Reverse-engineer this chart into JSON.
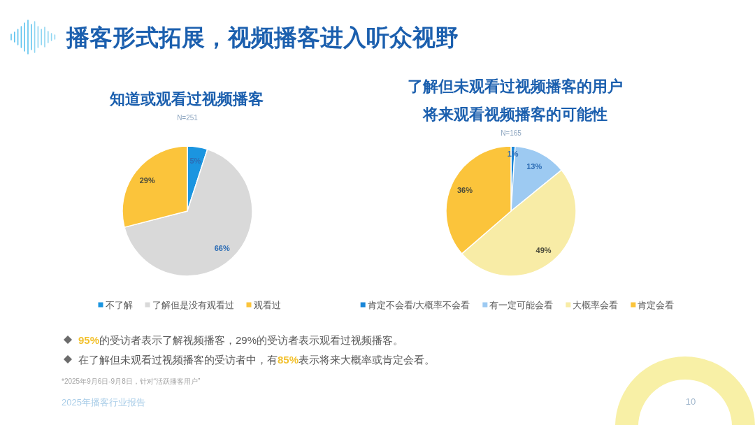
{
  "chart_data": [
    {
      "type": "pie",
      "title": "知道或观看过视频播客",
      "subtitle": "N=251",
      "categories": [
        "不了解",
        "了解但是没有观看过",
        "观看过"
      ],
      "values": [
        5,
        66,
        29
      ],
      "value_labels": [
        "5%",
        "66%",
        "29%"
      ],
      "colors": [
        "#1b95e0",
        "#d9d9d9",
        "#fbc43b"
      ],
      "legend": "bottom",
      "annotations": [
        "播客形式拓展，视频播客进入听众视野",
        "95%的受访者表示了解视频播客，29%的受访者表示观看过视频播客。",
        "*2025年9月6日-9月8日，针对“活跃播客用户”",
        "2025年播客行业报告",
        "10"
      ]
    },
    {
      "type": "pie",
      "title": "了解但未观看过视频播客的用户将来观看视频播客的可能性",
      "subtitle": "N=165",
      "categories": [
        "肯定不会看/大概率不会看",
        "有一定可能会看",
        "大概率会看",
        "肯定会看"
      ],
      "values": [
        1,
        13,
        49,
        36
      ],
      "value_labels": [
        "1%",
        "13%",
        "49%",
        "36%"
      ],
      "colors": [
        "#1a86d8",
        "#9dcaf2",
        "#f8eca6",
        "#fbc43b"
      ],
      "legend": "bottom",
      "annotations": [
        "在了解但未观看过视频播客的受访者中，有85%表示将来大概率或肯定会看。"
      ]
    }
  ]
}
